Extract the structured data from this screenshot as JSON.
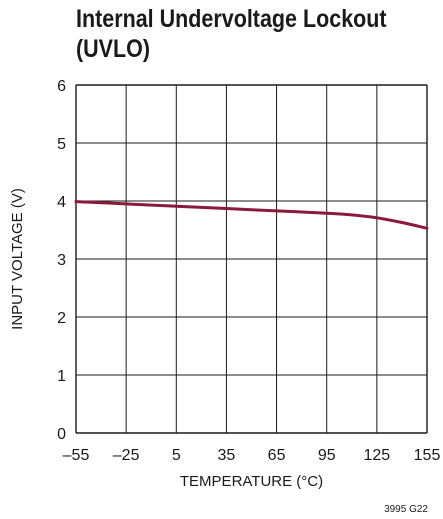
{
  "chart_data": {
    "type": "line",
    "title_lines": [
      "Internal Undervoltage Lockout",
      "(UVLO)"
    ],
    "xlabel": "TEMPERATURE (°C)",
    "ylabel": "INPUT VOLTAGE (V)",
    "xlim": [
      -55,
      155
    ],
    "ylim": [
      0,
      6
    ],
    "x_ticks": [
      -55,
      -25,
      5,
      35,
      65,
      95,
      125,
      155
    ],
    "x_tick_labels": [
      "–55",
      "–25",
      "5",
      "35",
      "65",
      "95",
      "125",
      "155"
    ],
    "y_ticks": [
      0,
      1,
      2,
      3,
      4,
      5,
      6
    ],
    "y_tick_labels": [
      "0",
      "1",
      "2",
      "3",
      "4",
      "5",
      "6"
    ],
    "grid": true,
    "line_color": "#8b1a3a",
    "series": [
      {
        "x": [
          -55,
          -25,
          5,
          35,
          65,
          95,
          110,
          125,
          140,
          155
        ],
        "y": [
          3.99,
          3.95,
          3.91,
          3.87,
          3.83,
          3.79,
          3.76,
          3.71,
          3.63,
          3.53
        ]
      }
    ],
    "figure_id": "3995 G22"
  }
}
